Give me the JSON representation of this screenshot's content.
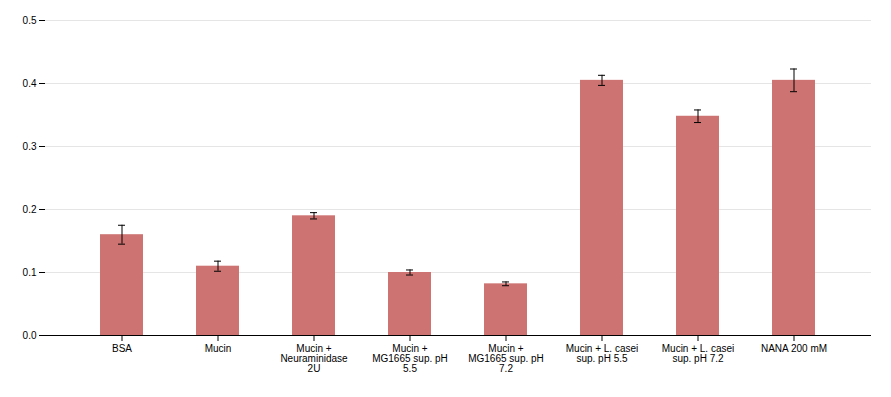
{
  "chart_data": {
    "type": "bar",
    "categories": [
      "BSA",
      "Mucin",
      "Mucin +\nNeuraminidase\n2U",
      "Mucin +\nMG1665 sup. pH\n5.5",
      "Mucin +\nMG1665 sup. pH\n7.2",
      "Mucin + L. casei\nsup. pH 5.5",
      "Mucin + L. casei\nsup. pH 7.2",
      "NANA 200 mM"
    ],
    "values": [
      0.16,
      0.11,
      0.19,
      0.1,
      0.082,
      0.405,
      0.348,
      0.405
    ],
    "errors": [
      0.015,
      0.008,
      0.005,
      0.004,
      0.003,
      0.008,
      0.01,
      0.018
    ],
    "color": "#cd7472",
    "ylim": [
      0.0,
      0.5
    ],
    "yticks": [
      {
        "value": 0.0,
        "label": "0.0"
      },
      0.1,
      0.2,
      0.3,
      0.4,
      0.5
    ],
    "grid": true
  }
}
